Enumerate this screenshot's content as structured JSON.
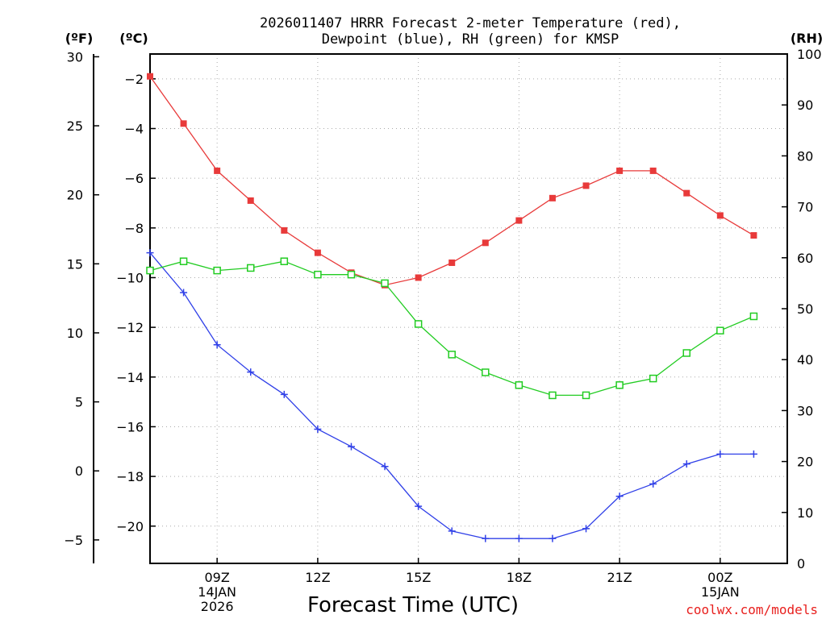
{
  "chart_data": {
    "type": "line",
    "title_line1": "2026011407 HRRR Forecast 2-meter Temperature (red),",
    "title_line2": "Dewpoint (blue), RH (green) for KMSP",
    "xlabel": "Forecast Time (UTC)",
    "credit": "coolwx.com/models",
    "unit_f": "(ºF)",
    "unit_c": "(ºC)",
    "unit_rh": "(RH)",
    "hours": [
      7,
      8,
      9,
      10,
      11,
      12,
      13,
      14,
      15,
      16,
      17,
      18,
      19,
      20,
      21,
      22,
      23,
      24,
      25
    ],
    "xlim": [
      7,
      26
    ],
    "ylim_c": [
      -21.5,
      -1
    ],
    "ylim_f": [
      -6.7,
      30.2
    ],
    "ylim_rh": [
      0,
      100
    ],
    "x_ticks": [
      {
        "hour": 9,
        "label": "09Z",
        "sub1": "14JAN",
        "sub2": "2026"
      },
      {
        "hour": 12,
        "label": "12Z",
        "sub1": "",
        "sub2": ""
      },
      {
        "hour": 15,
        "label": "15Z",
        "sub1": "",
        "sub2": ""
      },
      {
        "hour": 18,
        "label": "18Z",
        "sub1": "",
        "sub2": ""
      },
      {
        "hour": 21,
        "label": "21Z",
        "sub1": "",
        "sub2": ""
      },
      {
        "hour": 24,
        "label": "00Z",
        "sub1": "15JAN",
        "sub2": ""
      }
    ],
    "c_ticks": [
      {
        "v": -2,
        "label": "−2"
      },
      {
        "v": -4,
        "label": "−4"
      },
      {
        "v": -6,
        "label": "−6"
      },
      {
        "v": -8,
        "label": "−8"
      },
      {
        "v": -10,
        "label": "−10"
      },
      {
        "v": -12,
        "label": "−12"
      },
      {
        "v": -14,
        "label": "−14"
      },
      {
        "v": -16,
        "label": "−16"
      },
      {
        "v": -18,
        "label": "−18"
      },
      {
        "v": -20,
        "label": "−20"
      }
    ],
    "f_ticks": [
      {
        "v": 30,
        "label": "30"
      },
      {
        "v": 25,
        "label": "25"
      },
      {
        "v": 20,
        "label": "20"
      },
      {
        "v": 15,
        "label": "15"
      },
      {
        "v": 10,
        "label": "10"
      },
      {
        "v": 5,
        "label": "5"
      },
      {
        "v": 0,
        "label": "0"
      },
      {
        "v": -5,
        "label": "−5"
      }
    ],
    "rh_ticks": [
      {
        "v": 100,
        "label": "100"
      },
      {
        "v": 90,
        "label": "90"
      },
      {
        "v": 80,
        "label": "80"
      },
      {
        "v": 70,
        "label": "70"
      },
      {
        "v": 60,
        "label": "60"
      },
      {
        "v": 50,
        "label": "50"
      },
      {
        "v": 40,
        "label": "40"
      },
      {
        "v": 30,
        "label": "30"
      },
      {
        "v": 20,
        "label": "20"
      },
      {
        "v": 10,
        "label": "10"
      },
      {
        "v": 0,
        "label": "0"
      }
    ],
    "series": [
      {
        "name": "Temperature",
        "axis": "c",
        "color": "#e83a3a",
        "marker": "filled-square",
        "values": [
          -1.9,
          -3.8,
          -5.7,
          -6.9,
          -8.1,
          -9.0,
          -9.8,
          -10.3,
          -10.0,
          -9.4,
          -8.6,
          -7.7,
          -6.8,
          -6.3,
          -5.7,
          -5.7,
          -6.6,
          -7.5,
          -8.3
        ]
      },
      {
        "name": "Dewpoint",
        "axis": "c",
        "color": "#3040e8",
        "marker": "plus",
        "values": [
          -9.0,
          -10.6,
          -12.7,
          -13.8,
          -14.7,
          -16.1,
          -16.8,
          -17.6,
          -19.2,
          -20.2,
          -20.5,
          -20.5,
          -20.5,
          -20.1,
          -18.8,
          -18.3,
          -17.5,
          -17.1,
          -17.1
        ]
      },
      {
        "name": "RH",
        "axis": "rh",
        "color": "#22cc22",
        "marker": "open-square",
        "values": [
          57.5,
          59.3,
          57.5,
          58.0,
          59.3,
          56.7,
          56.7,
          55.0,
          47.0,
          41.0,
          37.5,
          35.0,
          33.0,
          33.0,
          35.0,
          36.3,
          41.3,
          45.7,
          48.5
        ]
      }
    ]
  }
}
